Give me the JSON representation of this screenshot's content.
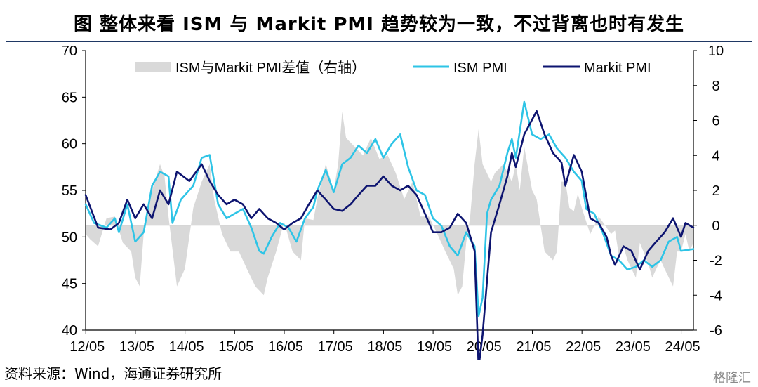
{
  "title": "图  整体来看 ISM 与 Markit PMI 趋势较为一致，不过背离也时有发生",
  "source": "资料来源：Wind，海通证券研究所",
  "watermark": "格隆汇",
  "chart_data": {
    "type": "line",
    "left_axis": {
      "ticks": [
        "70",
        "65",
        "60",
        "55",
        "50",
        "45",
        "40"
      ],
      "ylim": [
        40,
        70
      ]
    },
    "right_axis": {
      "ticks": [
        "10",
        "8",
        "6",
        "4",
        "2",
        "0",
        "-2",
        "-4",
        "-6"
      ],
      "ylim": [
        -6,
        10
      ]
    },
    "x_tick_labels": [
      "12/05",
      "13/05",
      "14/05",
      "15/05",
      "16/05",
      "17/05",
      "18/05",
      "19/05",
      "20/05",
      "21/05",
      "22/05",
      "23/05",
      "24/05"
    ],
    "x_range": [
      2012.33,
      2024.58
    ],
    "legend": {
      "placement": "top",
      "diff_label": "ISM与Markit PMI差值（右轴）",
      "ism_label": "ISM PMI",
      "markit_label": "Markit PMI"
    },
    "colors": {
      "ism": "#2ec4e6",
      "markit": "#0d1470",
      "diff": "#d9d9d9"
    },
    "series": [
      {
        "name": "ISM PMI",
        "axis": "left",
        "color": "#2ec4e6",
        "points": [
          [
            2012.33,
            53.5
          ],
          [
            2012.5,
            51.5
          ],
          [
            2012.75,
            51.0
          ],
          [
            2012.92,
            52.0
          ],
          [
            2013.0,
            50.5
          ],
          [
            2013.17,
            53.5
          ],
          [
            2013.33,
            49.5
          ],
          [
            2013.5,
            50.5
          ],
          [
            2013.67,
            55.5
          ],
          [
            2013.83,
            57.0
          ],
          [
            2014.0,
            56.5
          ],
          [
            2014.08,
            51.5
          ],
          [
            2014.25,
            54.0
          ],
          [
            2014.5,
            55.5
          ],
          [
            2014.67,
            58.5
          ],
          [
            2014.83,
            58.8
          ],
          [
            2015.0,
            53.5
          ],
          [
            2015.17,
            52.0
          ],
          [
            2015.33,
            52.5
          ],
          [
            2015.5,
            53.0
          ],
          [
            2015.67,
            51.0
          ],
          [
            2015.83,
            48.5
          ],
          [
            2015.92,
            48.2
          ],
          [
            2016.08,
            50.0
          ],
          [
            2016.25,
            51.5
          ],
          [
            2016.42,
            51.0
          ],
          [
            2016.58,
            49.5
          ],
          [
            2016.75,
            52.0
          ],
          [
            2016.92,
            53.2
          ],
          [
            2017.0,
            55.0
          ],
          [
            2017.17,
            57.2
          ],
          [
            2017.33,
            54.8
          ],
          [
            2017.5,
            57.8
          ],
          [
            2017.67,
            58.5
          ],
          [
            2017.83,
            59.8
          ],
          [
            2018.0,
            59.0
          ],
          [
            2018.17,
            60.5
          ],
          [
            2018.33,
            58.5
          ],
          [
            2018.5,
            60.0
          ],
          [
            2018.67,
            61.0
          ],
          [
            2018.83,
            57.5
          ],
          [
            2019.0,
            55.0
          ],
          [
            2019.17,
            54.5
          ],
          [
            2019.33,
            52.0
          ],
          [
            2019.5,
            51.2
          ],
          [
            2019.67,
            49.0
          ],
          [
            2019.83,
            48.0
          ],
          [
            2020.0,
            50.5
          ],
          [
            2020.17,
            49.0
          ],
          [
            2020.25,
            41.5
          ],
          [
            2020.33,
            43.5
          ],
          [
            2020.42,
            52.5
          ],
          [
            2020.5,
            54.0
          ],
          [
            2020.67,
            55.5
          ],
          [
            2020.83,
            59.0
          ],
          [
            2020.92,
            60.5
          ],
          [
            2021.0,
            58.5
          ],
          [
            2021.17,
            64.5
          ],
          [
            2021.33,
            61.0
          ],
          [
            2021.5,
            60.5
          ],
          [
            2021.67,
            61.0
          ],
          [
            2021.83,
            59.5
          ],
          [
            2022.0,
            58.5
          ],
          [
            2022.17,
            57.0
          ],
          [
            2022.33,
            56.0
          ],
          [
            2022.42,
            53.0
          ],
          [
            2022.58,
            52.5
          ],
          [
            2022.75,
            50.5
          ],
          [
            2022.92,
            48.0
          ],
          [
            2023.08,
            47.5
          ],
          [
            2023.25,
            46.5
          ],
          [
            2023.42,
            46.8
          ],
          [
            2023.58,
            47.5
          ],
          [
            2023.75,
            46.8
          ],
          [
            2023.92,
            47.5
          ],
          [
            2024.08,
            49.5
          ],
          [
            2024.25,
            50.0
          ],
          [
            2024.33,
            48.5
          ],
          [
            2024.58,
            48.7
          ]
        ]
      },
      {
        "name": "Markit PMI",
        "axis": "left",
        "color": "#0d1470",
        "points": [
          [
            2012.33,
            54.5
          ],
          [
            2012.58,
            51.0
          ],
          [
            2012.83,
            50.8
          ],
          [
            2013.0,
            51.5
          ],
          [
            2013.17,
            54.0
          ],
          [
            2013.33,
            52.0
          ],
          [
            2013.5,
            53.5
          ],
          [
            2013.67,
            52.0
          ],
          [
            2013.83,
            55.0
          ],
          [
            2014.0,
            53.5
          ],
          [
            2014.17,
            57.0
          ],
          [
            2014.42,
            56.0
          ],
          [
            2014.67,
            57.8
          ],
          [
            2014.83,
            56.0
          ],
          [
            2015.0,
            54.5
          ],
          [
            2015.17,
            53.5
          ],
          [
            2015.33,
            54.0
          ],
          [
            2015.5,
            53.5
          ],
          [
            2015.67,
            52.0
          ],
          [
            2015.83,
            53.0
          ],
          [
            2016.0,
            52.0
          ],
          [
            2016.17,
            51.5
          ],
          [
            2016.33,
            50.8
          ],
          [
            2016.5,
            51.5
          ],
          [
            2016.67,
            52.0
          ],
          [
            2016.83,
            53.5
          ],
          [
            2017.0,
            55.0
          ],
          [
            2017.17,
            54.0
          ],
          [
            2017.33,
            53.0
          ],
          [
            2017.5,
            52.8
          ],
          [
            2017.67,
            53.5
          ],
          [
            2017.83,
            54.5
          ],
          [
            2018.0,
            55.5
          ],
          [
            2018.17,
            55.5
          ],
          [
            2018.33,
            56.5
          ],
          [
            2018.5,
            55.5
          ],
          [
            2018.67,
            55.0
          ],
          [
            2018.83,
            55.5
          ],
          [
            2019.0,
            54.5
          ],
          [
            2019.17,
            52.5
          ],
          [
            2019.33,
            50.5
          ],
          [
            2019.5,
            50.5
          ],
          [
            2019.67,
            51.0
          ],
          [
            2019.83,
            52.5
          ],
          [
            2020.0,
            51.5
          ],
          [
            2020.17,
            48.5
          ],
          [
            2020.25,
            36.0
          ],
          [
            2020.33,
            39.5
          ],
          [
            2020.5,
            50.5
          ],
          [
            2020.67,
            53.5
          ],
          [
            2020.83,
            56.5
          ],
          [
            2020.92,
            59.0
          ],
          [
            2021.0,
            57.5
          ],
          [
            2021.17,
            61.0
          ],
          [
            2021.42,
            63.5
          ],
          [
            2021.58,
            61.0
          ],
          [
            2021.75,
            59.0
          ],
          [
            2021.92,
            58.0
          ],
          [
            2022.0,
            55.5
          ],
          [
            2022.17,
            58.8
          ],
          [
            2022.33,
            57.0
          ],
          [
            2022.5,
            52.0
          ],
          [
            2022.67,
            51.5
          ],
          [
            2022.83,
            50.0
          ],
          [
            2022.92,
            48.0
          ],
          [
            2023.0,
            47.0
          ],
          [
            2023.17,
            49.0
          ],
          [
            2023.33,
            48.5
          ],
          [
            2023.5,
            46.5
          ],
          [
            2023.67,
            48.5
          ],
          [
            2023.83,
            49.5
          ],
          [
            2024.0,
            50.5
          ],
          [
            2024.17,
            52.0
          ],
          [
            2024.33,
            50.0
          ],
          [
            2024.42,
            51.5
          ],
          [
            2024.58,
            51.0
          ]
        ]
      },
      {
        "name": "ISM与Markit PMI差值（右轴）",
        "axis": "right",
        "type": "area",
        "color": "#d9d9d9",
        "points": [
          [
            2012.33,
            -0.5
          ],
          [
            2012.42,
            -0.8
          ],
          [
            2012.58,
            -1.2
          ],
          [
            2012.75,
            0.4
          ],
          [
            2012.92,
            0.5
          ],
          [
            2013.08,
            -1.0
          ],
          [
            2013.25,
            -1.5
          ],
          [
            2013.33,
            -3.0
          ],
          [
            2013.42,
            -3.5
          ],
          [
            2013.5,
            -0.5
          ],
          [
            2013.67,
            2.0
          ],
          [
            2013.83,
            3.5
          ],
          [
            2013.92,
            2.8
          ],
          [
            2014.0,
            0.5
          ],
          [
            2014.17,
            -3.5
          ],
          [
            2014.33,
            -2.5
          ],
          [
            2014.5,
            1.0
          ],
          [
            2014.67,
            2.5
          ],
          [
            2014.83,
            3.5
          ],
          [
            2014.92,
            1.5
          ],
          [
            2015.08,
            -0.5
          ],
          [
            2015.25,
            -1.5
          ],
          [
            2015.42,
            -1.5
          ],
          [
            2015.58,
            -2.5
          ],
          [
            2015.75,
            -3.5
          ],
          [
            2015.92,
            -4.0
          ],
          [
            2016.0,
            -3.0
          ],
          [
            2016.17,
            -1.5
          ],
          [
            2016.33,
            0.2
          ],
          [
            2016.5,
            -1.5
          ],
          [
            2016.67,
            -2.0
          ],
          [
            2016.75,
            0.4
          ],
          [
            2016.92,
            0.3
          ],
          [
            2017.0,
            1.5
          ],
          [
            2017.17,
            3.5
          ],
          [
            2017.33,
            2.0
          ],
          [
            2017.42,
            3.5
          ],
          [
            2017.5,
            6.5
          ],
          [
            2017.58,
            5.0
          ],
          [
            2017.75,
            4.5
          ],
          [
            2017.92,
            4.0
          ],
          [
            2018.08,
            5.0
          ],
          [
            2018.25,
            3.8
          ],
          [
            2018.42,
            4.0
          ],
          [
            2018.58,
            3.0
          ],
          [
            2018.75,
            1.5
          ],
          [
            2018.92,
            2.5
          ],
          [
            2019.08,
            0.5
          ],
          [
            2019.25,
            0.5
          ],
          [
            2019.42,
            -0.5
          ],
          [
            2019.58,
            -1.5
          ],
          [
            2019.75,
            -2.5
          ],
          [
            2019.83,
            -4.0
          ],
          [
            2019.92,
            -3.5
          ],
          [
            2020.0,
            -1.0
          ],
          [
            2020.08,
            0.5
          ],
          [
            2020.17,
            3.5
          ],
          [
            2020.25,
            5.5
          ],
          [
            2020.33,
            3.5
          ],
          [
            2020.5,
            2.5
          ],
          [
            2020.58,
            3.0
          ],
          [
            2020.75,
            3.5
          ],
          [
            2020.92,
            2.5
          ],
          [
            2021.0,
            3.5
          ],
          [
            2021.08,
            2.0
          ],
          [
            2021.17,
            4.5
          ],
          [
            2021.33,
            2.0
          ],
          [
            2021.42,
            1.5
          ],
          [
            2021.58,
            -1.5
          ],
          [
            2021.75,
            -2.0
          ],
          [
            2021.83,
            -1.5
          ],
          [
            2021.92,
            2.5
          ],
          [
            2022.0,
            2.5
          ],
          [
            2022.08,
            1.0
          ],
          [
            2022.17,
            0.8
          ],
          [
            2022.25,
            1.8
          ],
          [
            2022.33,
            1.0
          ],
          [
            2022.5,
            -0.5
          ],
          [
            2022.67,
            0.5
          ],
          [
            2022.75,
            0.2
          ],
          [
            2022.92,
            -0.5
          ],
          [
            2023.0,
            -0.3
          ],
          [
            2023.08,
            -1.8
          ],
          [
            2023.17,
            -1.2
          ],
          [
            2023.25,
            -2.0
          ],
          [
            2023.42,
            -3.0
          ],
          [
            2023.5,
            -1.0
          ],
          [
            2023.67,
            -2.2
          ],
          [
            2023.75,
            -3.0
          ],
          [
            2023.83,
            -2.5
          ],
          [
            2023.92,
            -2.0
          ],
          [
            2024.0,
            -2.5
          ],
          [
            2024.17,
            -3.5
          ],
          [
            2024.25,
            -1.5
          ],
          [
            2024.33,
            -1.5
          ],
          [
            2024.42,
            -0.5
          ],
          [
            2024.5,
            -1.5
          ],
          [
            2024.58,
            -1.0
          ]
        ]
      }
    ]
  }
}
